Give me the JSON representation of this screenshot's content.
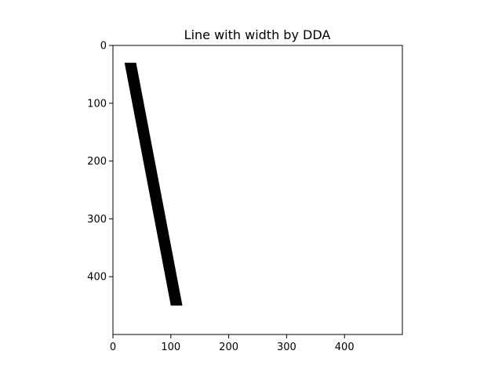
{
  "chart_data": {
    "type": "image",
    "title": "Line with width by DDA",
    "xlabel": "",
    "ylabel": "",
    "image_size": [
      500,
      500
    ],
    "x_axis": {
      "lim": [
        0,
        500
      ],
      "ticks": [
        0,
        100,
        200,
        300,
        400
      ]
    },
    "y_axis": {
      "lim": [
        500,
        0
      ],
      "ticks": [
        0,
        100,
        200,
        300,
        400
      ],
      "inverted": true
    },
    "grid": false,
    "line": {
      "start": [
        20,
        30
      ],
      "end": [
        100,
        450
      ],
      "width": 20,
      "color": "#000000"
    },
    "background_color": "#ffffff"
  }
}
